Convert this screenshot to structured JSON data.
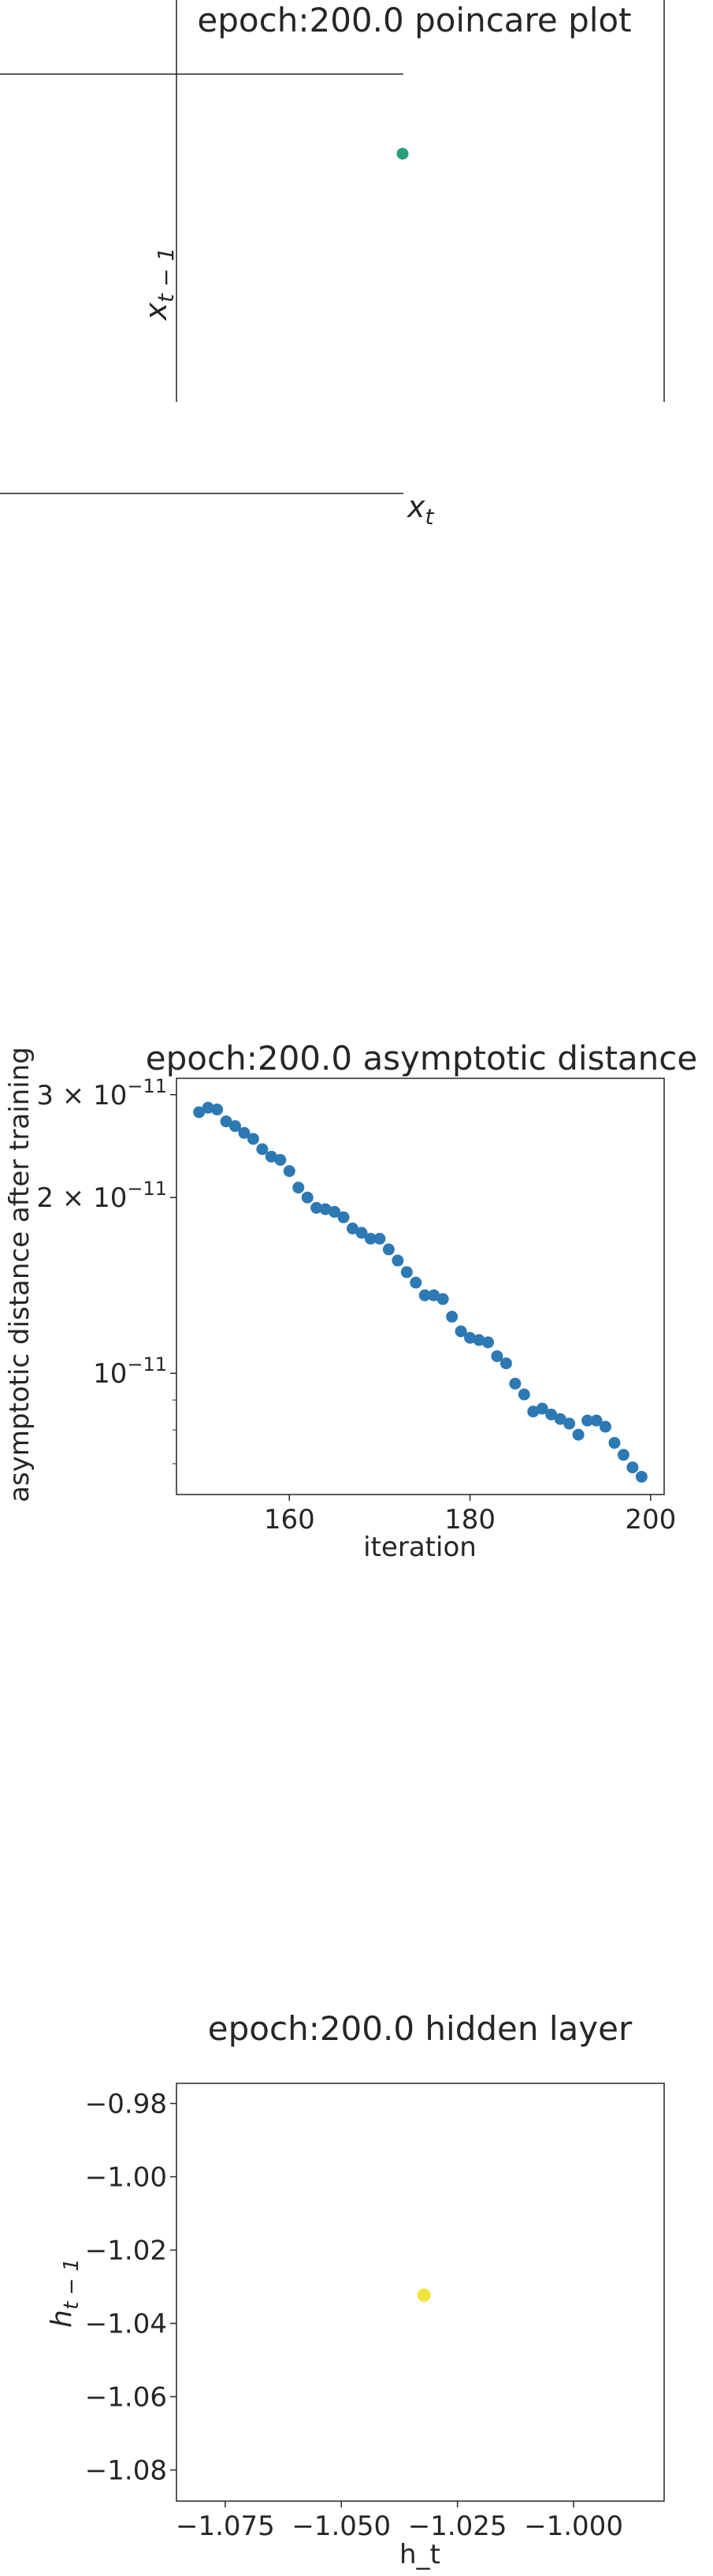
{
  "chart_data": [
    {
      "type": "scatter",
      "title": "epoch:200.0 poincare plot",
      "xlabel_main": "x",
      "xlabel_sub": "t",
      "ylabel_main": "x",
      "ylabel_sub": "t − 1",
      "axes_style": "centered spines, no ticks",
      "points": [
        {
          "x": 0,
          "y": 0
        }
      ],
      "point_color": "#2a9d7c",
      "grid": false
    },
    {
      "type": "scatter",
      "title": "epoch:200.0 asymptotic distance",
      "xlabel": "iteration",
      "ylabel": "asymptotic distance after training",
      "yscale": "log",
      "xlim": [
        147.5,
        201.5
      ],
      "ylim": [
        6.2e-12,
        3.2e-11
      ],
      "xticks": [
        160,
        180,
        200
      ],
      "yticks": [
        {
          "value": 3e-11,
          "mant": "3",
          "exp": "−11"
        },
        {
          "value": 2e-11,
          "mant": "2",
          "exp": "−11"
        },
        {
          "value": 1e-11,
          "mant": "",
          "exp": "−11"
        }
      ],
      "minor_yticks": [
        9e-12,
        8e-12,
        7e-12
      ],
      "x": [
        150,
        151,
        152,
        153,
        154,
        155,
        156,
        157,
        158,
        159,
        160,
        161,
        162,
        163,
        164,
        165,
        166,
        167,
        168,
        169,
        170,
        171,
        172,
        173,
        174,
        175,
        176,
        177,
        178,
        179,
        180,
        181,
        182,
        183,
        184,
        185,
        186,
        187,
        188,
        189,
        190,
        191,
        192,
        193,
        194,
        195,
        196,
        197,
        198,
        199
      ],
      "y": [
        2.8e-11,
        2.85e-11,
        2.83e-11,
        2.7e-11,
        2.65e-11,
        2.58e-11,
        2.52e-11,
        2.42e-11,
        2.35e-11,
        2.32e-11,
        2.22e-11,
        2.08e-11,
        2e-11,
        1.92e-11,
        1.91e-11,
        1.89e-11,
        1.85e-11,
        1.77e-11,
        1.74e-11,
        1.7e-11,
        1.7e-11,
        1.63e-11,
        1.56e-11,
        1.49e-11,
        1.43e-11,
        1.36e-11,
        1.36e-11,
        1.34e-11,
        1.25e-11,
        1.18e-11,
        1.15e-11,
        1.14e-11,
        1.13e-11,
        1.07e-11,
        1.04e-11,
        9.6e-12,
        9.2e-12,
        8.6e-12,
        8.7e-12,
        8.5e-12,
        8.35e-12,
        8.2e-12,
        7.85e-12,
        8.3e-12,
        8.3e-12,
        8.1e-12,
        7.6e-12,
        7.25e-12,
        6.9e-12,
        6.65e-12
      ],
      "point_color": "#2c79b3",
      "grid": false
    },
    {
      "type": "scatter",
      "title": "epoch:200.0 hidden layer",
      "xlabel": "h_t",
      "ylabel_main": "h",
      "ylabel_sub": "t − 1",
      "xlim": [
        -1.0855,
        -0.9805
      ],
      "ylim": [
        -1.0885,
        -0.9745
      ],
      "xticks": [
        -1.075,
        -1.05,
        -1.025,
        -1.0
      ],
      "xtick_labels": [
        "−1.075",
        "−1.050",
        "−1.025",
        "−1.000"
      ],
      "yticks": [
        -0.98,
        -1.0,
        -1.02,
        -1.04,
        -1.06,
        -1.08
      ],
      "ytick_labels": [
        "−0.98",
        "−1.00",
        "−1.02",
        "−1.04",
        "−1.06",
        "−1.08"
      ],
      "points": [
        {
          "x": -1.0322,
          "y": -1.0323
        }
      ],
      "point_color": "#f2e43a",
      "grid": false
    }
  ]
}
